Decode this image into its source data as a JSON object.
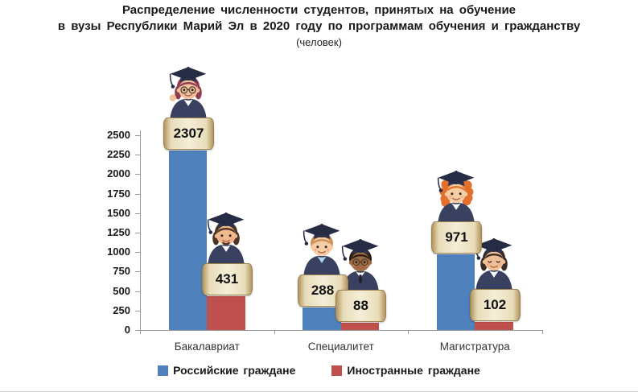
{
  "title": {
    "line1": "Распределение численности студентов, принятых на обучение",
    "line2": "в вузы Республики Марий Эл в 2020 году по программам обучения и гражданству",
    "line3": "(человек)"
  },
  "chart_data": {
    "type": "bar",
    "title": "Распределение численности студентов, принятых на обучение в вузы Республики Марий Эл в 2020 году по программам обучения и гражданству",
    "unit": "человек",
    "categories": [
      "Бакалавриат",
      "Специалитет",
      "Магистратура"
    ],
    "series": [
      {
        "name": "Российские граждане",
        "color": "#4f81bd",
        "values": [
          2307,
          288,
          971
        ]
      },
      {
        "name": "Иностранные граждане",
        "color": "#c0504d",
        "values": [
          431,
          88,
          102
        ]
      }
    ],
    "ylim": [
      0,
      2500
    ],
    "ytick_step": 250,
    "yticks": [
      0,
      250,
      500,
      750,
      1000,
      1250,
      1500,
      1750,
      2000,
      2250,
      2500
    ],
    "grid": false,
    "legend_position": "bottom",
    "bar_value_labels": true
  },
  "figures": [
    {
      "category": 0,
      "series": 0,
      "desc": "female graduate, burgundy bob, glasses, waving hand",
      "skin": "#f2c29c",
      "hair": "#8e3c50",
      "hair_style": "bob",
      "glasses": true,
      "wave": true
    },
    {
      "category": 0,
      "series": 1,
      "desc": "male graduate, brown hair, goatee beard",
      "skin": "#efb88d",
      "hair": "#4d3425",
      "hair_style": "long",
      "beard": true
    },
    {
      "category": 1,
      "series": 0,
      "desc": "male graduate, light-brown hair, blue shirt",
      "skin": "#f6cda4",
      "hair": "#c79157",
      "hair_style": "short",
      "shirt": "#aed6f2"
    },
    {
      "category": 1,
      "series": 1,
      "desc": "male graduate, dark skin, glasses, white shirt and tie",
      "skin": "#a06a45",
      "hair": "#2b1f16",
      "hair_style": "short",
      "glasses": true,
      "tie": true,
      "shirt": "#ffffff"
    },
    {
      "category": 2,
      "series": 0,
      "desc": "female graduate, curly orange hair",
      "skin": "#f6cda4",
      "hair": "#e2712d",
      "hair_style": "curly"
    },
    {
      "category": 2,
      "series": 1,
      "desc": "graduate, dark bob hair, closed smiling eyes",
      "skin": "#f2c096",
      "hair": "#3a2d26",
      "hair_style": "bob",
      "eyes": "closed"
    }
  ],
  "style_colors": {
    "gown": "#3a4060",
    "cap": "#2d3350",
    "cap_board": "#272c45",
    "scroll_bg": "#f2e9cd",
    "scroll_edge": "#b3955e",
    "axis": "#9a9a9a",
    "text": "#1a1a1a"
  }
}
